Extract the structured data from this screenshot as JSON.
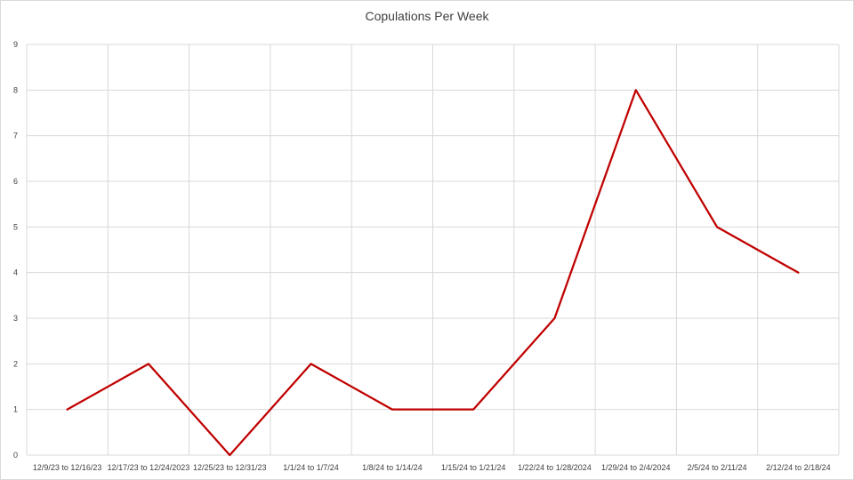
{
  "chart_data": {
    "type": "line",
    "title": "Copulations Per Week",
    "xlabel": "",
    "ylabel": "",
    "categories": [
      "12/9/23 to 12/16/23",
      "12/17/23 to 12/24/2023",
      "12/25/23 to 12/31/23",
      "1/1/24 to 1/7/24",
      "1/8/24 to 1/14/24",
      "1/15/24 to 1/21/24",
      "1/22/24 to 1/28/2024",
      "1/29/24 to 2/4/2024",
      "2/5/24 to 2/11/24",
      "2/12/24 to 2/18/24"
    ],
    "series": [
      {
        "values": [
          1,
          2,
          0,
          2,
          1,
          1,
          3,
          8,
          5,
          4
        ],
        "color": "#c00000"
      }
    ],
    "ylim": [
      0,
      9
    ],
    "yticks": [
      0,
      1,
      2,
      3,
      4,
      5,
      6,
      7,
      8,
      9
    ],
    "grid": true,
    "legend": "none",
    "gridColor": "#d9d9d9"
  }
}
